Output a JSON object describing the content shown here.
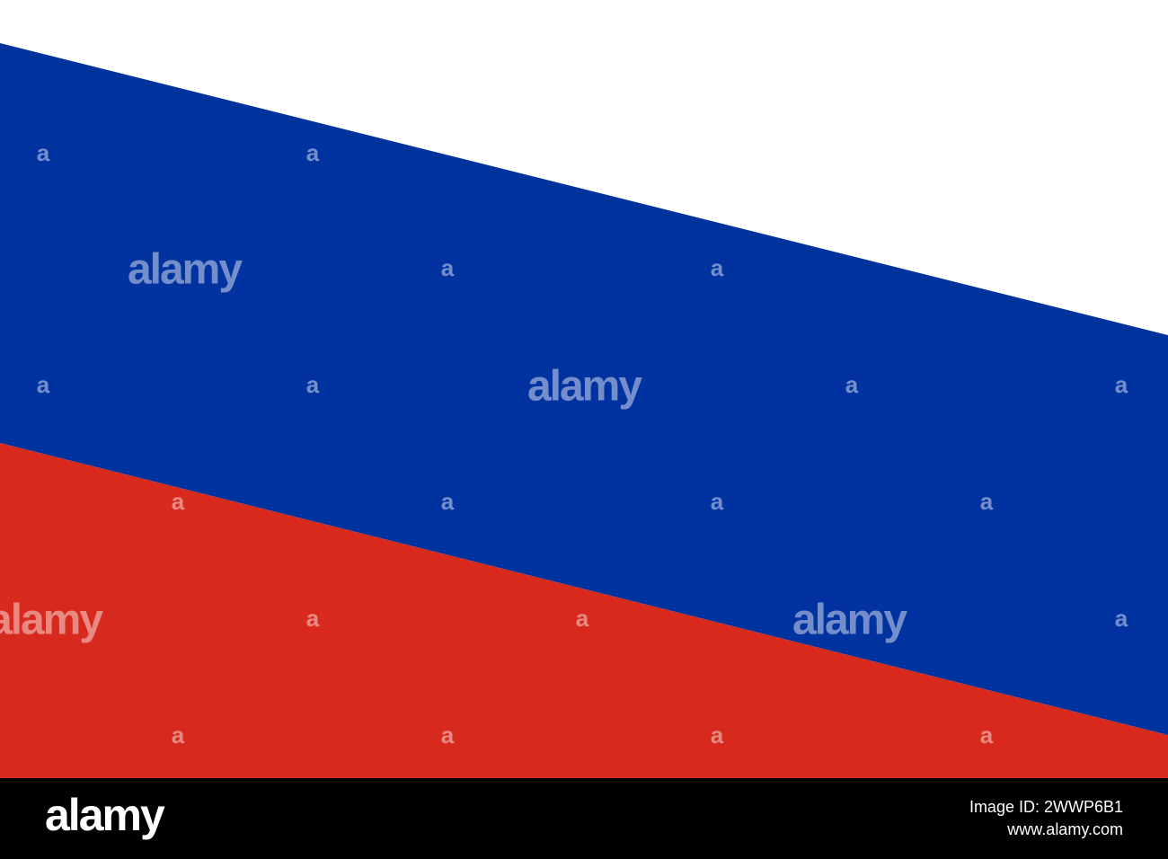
{
  "watermarks": [
    "alamy",
    "alamy",
    "alamy",
    "alamy"
  ],
  "marks": [
    "a",
    "a",
    "a",
    "a",
    "a",
    "a",
    "a",
    "a",
    "a",
    "a",
    "a",
    "a",
    "a",
    "a",
    "a",
    "a",
    "a",
    "a",
    "a"
  ],
  "footer": {
    "logo": "alamy",
    "image_id": "Image ID: 2WWP6B1",
    "site": "www.alamy.com"
  }
}
